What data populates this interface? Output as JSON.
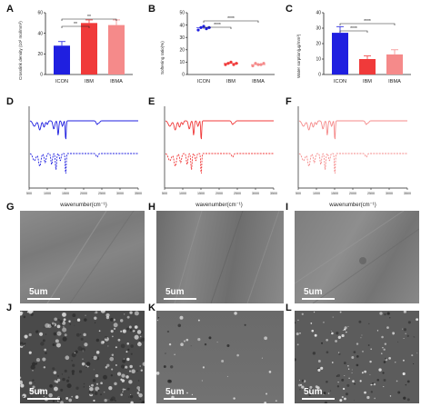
{
  "panels": {
    "A": "A",
    "B": "B",
    "C": "C",
    "D": "D",
    "E": "E",
    "F": "F",
    "G": "G",
    "H": "H",
    "I": "I",
    "J": "J",
    "K": "K",
    "L": "L"
  },
  "colors": {
    "icon": "#1f1fe0",
    "ibm": "#f03a3a",
    "ibma": "#f58a8a"
  },
  "chart_data": [
    {
      "type": "bar",
      "panel": "A",
      "categories": [
        "ICON",
        "IBM",
        "IBMA"
      ],
      "values": [
        28,
        50,
        48
      ],
      "errors": [
        4,
        3,
        5
      ],
      "ylabel": "Crosslink density (10³ mol/mm³)",
      "ylim": [
        0,
        60
      ],
      "yticks": [
        "0",
        "20",
        "40",
        "60"
      ],
      "significance": [
        "**",
        "**"
      ]
    },
    {
      "type": "scatter",
      "panel": "B",
      "categories": [
        "ICON",
        "IBM",
        "IBMA"
      ],
      "points": [
        [
          36,
          38,
          39,
          37,
          38
        ],
        [
          8,
          9,
          10,
          8,
          9
        ],
        [
          7,
          9,
          8,
          8,
          9
        ]
      ],
      "means": [
        38,
        9,
        8
      ],
      "ylabel": "Softening ratio(%)",
      "ylim": [
        0,
        50
      ],
      "yticks": [
        "0",
        "10",
        "20",
        "30",
        "40",
        "50"
      ],
      "significance": [
        "****",
        "****"
      ]
    },
    {
      "type": "bar",
      "panel": "C",
      "categories": [
        "ICON",
        "IBM",
        "IBMA"
      ],
      "values": [
        27,
        10,
        13
      ],
      "errors": [
        4,
        2,
        3
      ],
      "ylabel": "Water sorption(μg/mm³)",
      "ylim": [
        0,
        40
      ],
      "yticks": [
        "0",
        "10",
        "20",
        "30",
        "40"
      ],
      "significance": [
        "****",
        "****"
      ]
    },
    {
      "type": "line",
      "panel": "D",
      "xlabel": "wavenumber(cm⁻¹)",
      "xticks": [
        "500",
        "1000",
        "1500",
        "2000",
        "2500",
        "3000",
        "3500"
      ],
      "series": [
        {
          "style": "solid"
        },
        {
          "style": "dashed"
        }
      ]
    },
    {
      "type": "line",
      "panel": "E",
      "xlabel": "wavenumber(cm⁻¹)",
      "xticks": [
        "500",
        "1000",
        "1500",
        "2000",
        "2500",
        "3000",
        "3500"
      ],
      "series": [
        {
          "style": "solid"
        },
        {
          "style": "dashed"
        }
      ]
    },
    {
      "type": "line",
      "panel": "F",
      "xlabel": "wavenumber(cm⁻¹)",
      "xticks": [
        "500",
        "1000",
        "1500",
        "2000",
        "2500",
        "3000",
        "3500"
      ],
      "series": [
        {
          "style": "solid"
        },
        {
          "style": "dashed"
        }
      ]
    }
  ],
  "sem": {
    "scale_label": "5um"
  }
}
